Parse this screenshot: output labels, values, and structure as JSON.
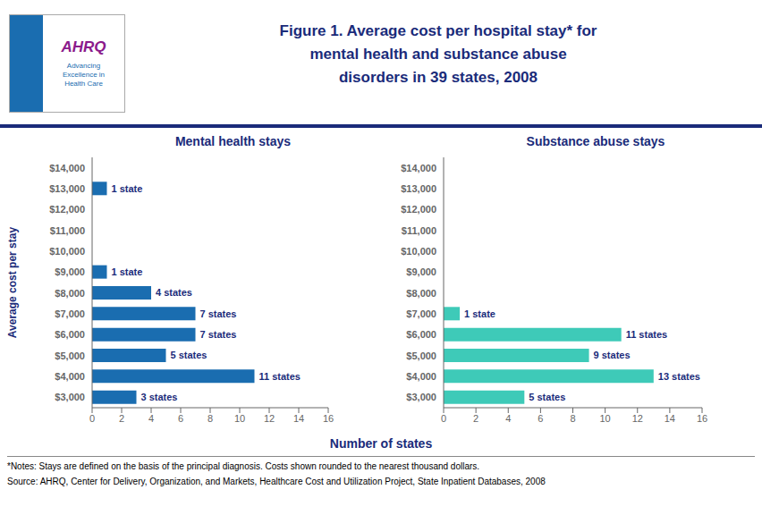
{
  "title": "Figure 1. Average cost per hospital stay* for\nmental health and substance abuse\ndisorders in 39 states, 2008",
  "xlabel": "Number of states",
  "annotations": [
    "AHRQ",
    "Advancing\nExcellence in\nHealth Care",
    "*Notes: Stays are defined on the basis of the principal diagnosis. Costs shown rounded to the nearest thousand dollars.",
    "Source:  AHRQ, Center for Delivery, Organization, and Markets, Healthcare Cost and Utilization Project, State Inpatient Databases, 2008"
  ],
  "chart_data": [
    {
      "type": "bar",
      "orientation": "horizontal",
      "title": "Mental health stays",
      "y_label": "Average cost per stay",
      "categories": [
        "$14,000",
        "$13,000",
        "$12,000",
        "$11,000",
        "$10,000",
        "$9,000",
        "$8,000",
        "$7,000",
        "$6,000",
        "$5,000",
        "$4,000",
        "$3,000"
      ],
      "values": [
        0,
        1,
        0,
        0,
        0,
        1,
        4,
        7,
        7,
        5,
        11,
        3
      ],
      "value_labels": [
        null,
        "1 state",
        null,
        null,
        null,
        "1 state",
        "4 states",
        "7 states",
        "7 states",
        "5 states",
        "11 states",
        "3 states"
      ],
      "data_labels": true,
      "color": "#1a6db0",
      "xlim": [
        0,
        16
      ],
      "xticks": [
        0,
        2,
        4,
        6,
        8,
        10,
        12,
        14,
        16
      ],
      "grid": false
    },
    {
      "type": "bar",
      "orientation": "horizontal",
      "title": "Substance abuse stays",
      "categories": [
        "$14,000",
        "$13,000",
        "$12,000",
        "$11,000",
        "$10,000",
        "$9,000",
        "$8,000",
        "$7,000",
        "$6,000",
        "$5,000",
        "$4,000",
        "$3,000"
      ],
      "values": [
        0,
        0,
        0,
        0,
        0,
        0,
        0,
        1,
        11,
        9,
        13,
        5
      ],
      "value_labels": [
        null,
        null,
        null,
        null,
        null,
        null,
        null,
        "1 state",
        "11 states",
        "9 states",
        "13 states",
        "5 states"
      ],
      "data_labels": true,
      "color": "#3ecab8",
      "xlim": [
        0,
        16
      ],
      "xticks": [
        0,
        2,
        4,
        6,
        8,
        10,
        12,
        14,
        16
      ],
      "grid": false
    }
  ]
}
